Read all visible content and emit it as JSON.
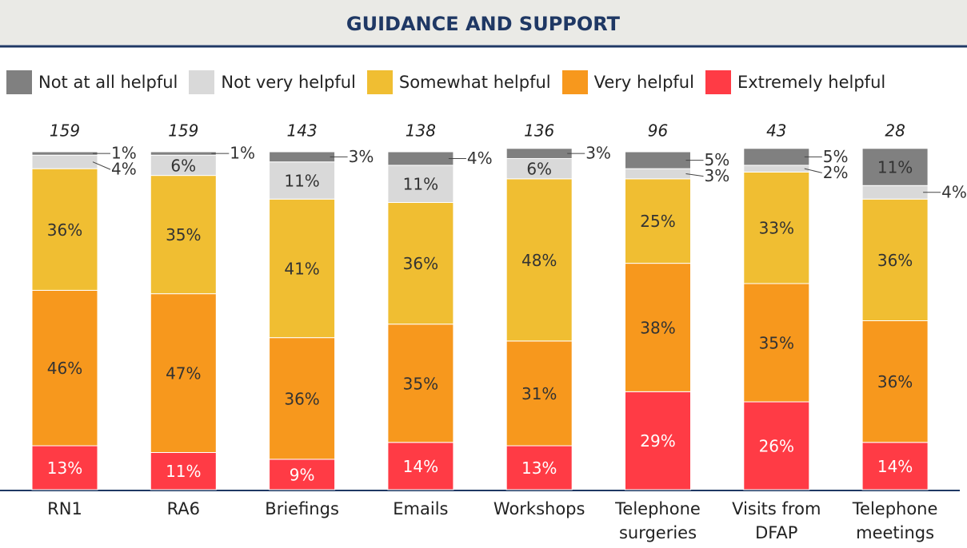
{
  "chart_data": {
    "type": "stacked_bar_100",
    "title": "GUIDANCE AND SUPPORT",
    "categories": [
      "RN1",
      "RA6",
      "Briefings",
      "Emails",
      "Workshops",
      "Telephone surgeries",
      "Visits from DFAP",
      "Telephone meetings"
    ],
    "totals": [
      159,
      159,
      143,
      138,
      136,
      96,
      43,
      28
    ],
    "ylim": [
      0,
      100
    ],
    "series": [
      {
        "name": "Not at all helpful",
        "color": "#808080",
        "values": [
          1,
          1,
          3,
          4,
          3,
          5,
          5,
          11
        ],
        "value_labels": [
          "1%",
          "1%",
          "3%",
          "4%",
          "3%",
          "5%",
          "5%",
          "11%"
        ]
      },
      {
        "name": "Not very helpful",
        "color": "#d9d9d9",
        "values": [
          4,
          6,
          11,
          11,
          6,
          3,
          2,
          4
        ],
        "value_labels": [
          "4%",
          "6%",
          "11%",
          "11%",
          "6%",
          "3%",
          "2%",
          "4%"
        ]
      },
      {
        "name": "Somewhat helpful",
        "color": "#f0be32",
        "values": [
          36,
          35,
          41,
          36,
          48,
          25,
          33,
          36
        ],
        "value_labels": [
          "36%",
          "35%",
          "41%",
          "36%",
          "48%",
          "25%",
          "33%",
          "36%"
        ]
      },
      {
        "name": "Very helpful",
        "color": "#f7981d",
        "values": [
          46,
          47,
          36,
          35,
          31,
          38,
          35,
          36
        ],
        "value_labels": [
          "46%",
          "47%",
          "36%",
          "35%",
          "31%",
          "38%",
          "35%",
          "36%"
        ]
      },
      {
        "name": "Extremely helpful",
        "color": "#ff3b45",
        "values": [
          13,
          11,
          9,
          14,
          13,
          29,
          26,
          14
        ],
        "value_labels": [
          "13%",
          "11%",
          "9%",
          "14%",
          "13%",
          "29%",
          "26%",
          "14%"
        ]
      }
    ]
  }
}
